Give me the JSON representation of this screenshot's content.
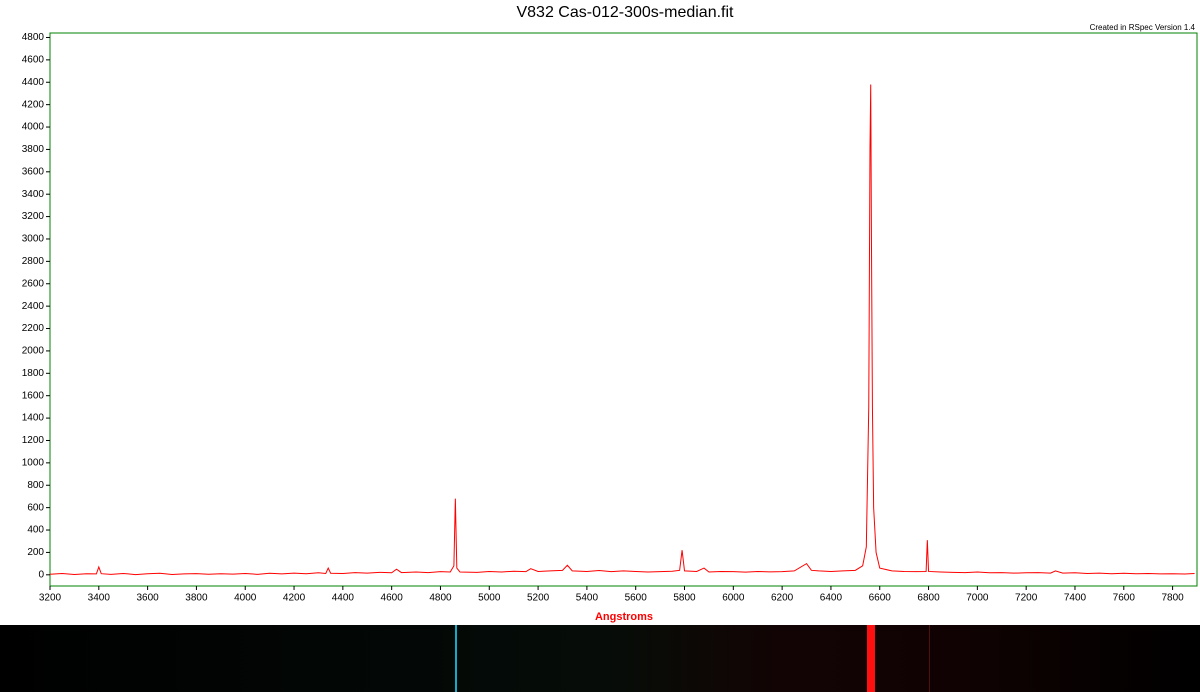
{
  "chart_data": {
    "type": "line",
    "title": "V832 Cas-012-300s-median.fit",
    "annotation": "Created in RSpec Version 1.4",
    "x_label": "Angstroms",
    "x": [
      3200,
      3250,
      3300,
      3350,
      3390,
      3400,
      3410,
      3450,
      3500,
      3550,
      3600,
      3650,
      3700,
      3750,
      3800,
      3850,
      3900,
      3950,
      4000,
      4050,
      4100,
      4150,
      4200,
      4250,
      4300,
      4330,
      4340,
      4350,
      4400,
      4450,
      4500,
      4550,
      4600,
      4620,
      4640,
      4700,
      4750,
      4800,
      4840,
      4855,
      4861,
      4867,
      4880,
      4950,
      5000,
      5050,
      5100,
      5150,
      5170,
      5200,
      5250,
      5300,
      5320,
      5340,
      5400,
      5450,
      5500,
      5550,
      5600,
      5650,
      5700,
      5750,
      5780,
      5790,
      5800,
      5850,
      5880,
      5900,
      5950,
      6000,
      6050,
      6100,
      6150,
      6200,
      6250,
      6300,
      6320,
      6350,
      6400,
      6450,
      6500,
      6530,
      6545,
      6555,
      6560,
      6563,
      6566,
      6570,
      6575,
      6585,
      6600,
      6650,
      6700,
      6750,
      6790,
      6795,
      6800,
      6850,
      6900,
      6950,
      7000,
      7050,
      7100,
      7150,
      7200,
      7250,
      7300,
      7320,
      7350,
      7400,
      7450,
      7500,
      7550,
      7600,
      7650,
      7700,
      7750,
      7800,
      7850,
      7890
    ],
    "values": [
      5,
      12,
      3,
      10,
      8,
      70,
      10,
      4,
      12,
      2,
      9,
      14,
      3,
      8,
      11,
      5,
      10,
      6,
      12,
      4,
      14,
      8,
      15,
      10,
      18,
      12,
      60,
      14,
      12,
      20,
      15,
      22,
      18,
      50,
      20,
      25,
      20,
      28,
      25,
      80,
      680,
      60,
      25,
      22,
      30,
      25,
      32,
      28,
      55,
      30,
      35,
      40,
      85,
      35,
      30,
      38,
      28,
      35,
      30,
      25,
      28,
      32,
      40,
      220,
      35,
      30,
      60,
      25,
      30,
      28,
      24,
      30,
      26,
      28,
      35,
      100,
      40,
      35,
      30,
      35,
      40,
      80,
      250,
      1500,
      3800,
      4380,
      3000,
      1500,
      600,
      200,
      60,
      35,
      30,
      28,
      30,
      310,
      30,
      25,
      22,
      20,
      25,
      18,
      20,
      15,
      18,
      20,
      15,
      35,
      15,
      18,
      12,
      15,
      10,
      14,
      9,
      12,
      8,
      10,
      7,
      12
    ],
    "color": "#ff0000",
    "xlim": [
      3200,
      7900
    ],
    "ylim": [
      -100,
      4840
    ],
    "xticks": [
      3200,
      3400,
      3600,
      3800,
      4000,
      4200,
      4400,
      4600,
      4800,
      5000,
      5200,
      5400,
      5600,
      5800,
      6000,
      6200,
      6400,
      6600,
      6800,
      7000,
      7200,
      7400,
      7600,
      7800
    ],
    "yticks": [
      0,
      200,
      400,
      600,
      800,
      1000,
      1200,
      1400,
      1600,
      1800,
      2000,
      2200,
      2400,
      2600,
      2800,
      3000,
      3200,
      3400,
      3600,
      3800,
      4000,
      4200,
      4400,
      4600,
      4800
    ],
    "grid": false
  }
}
